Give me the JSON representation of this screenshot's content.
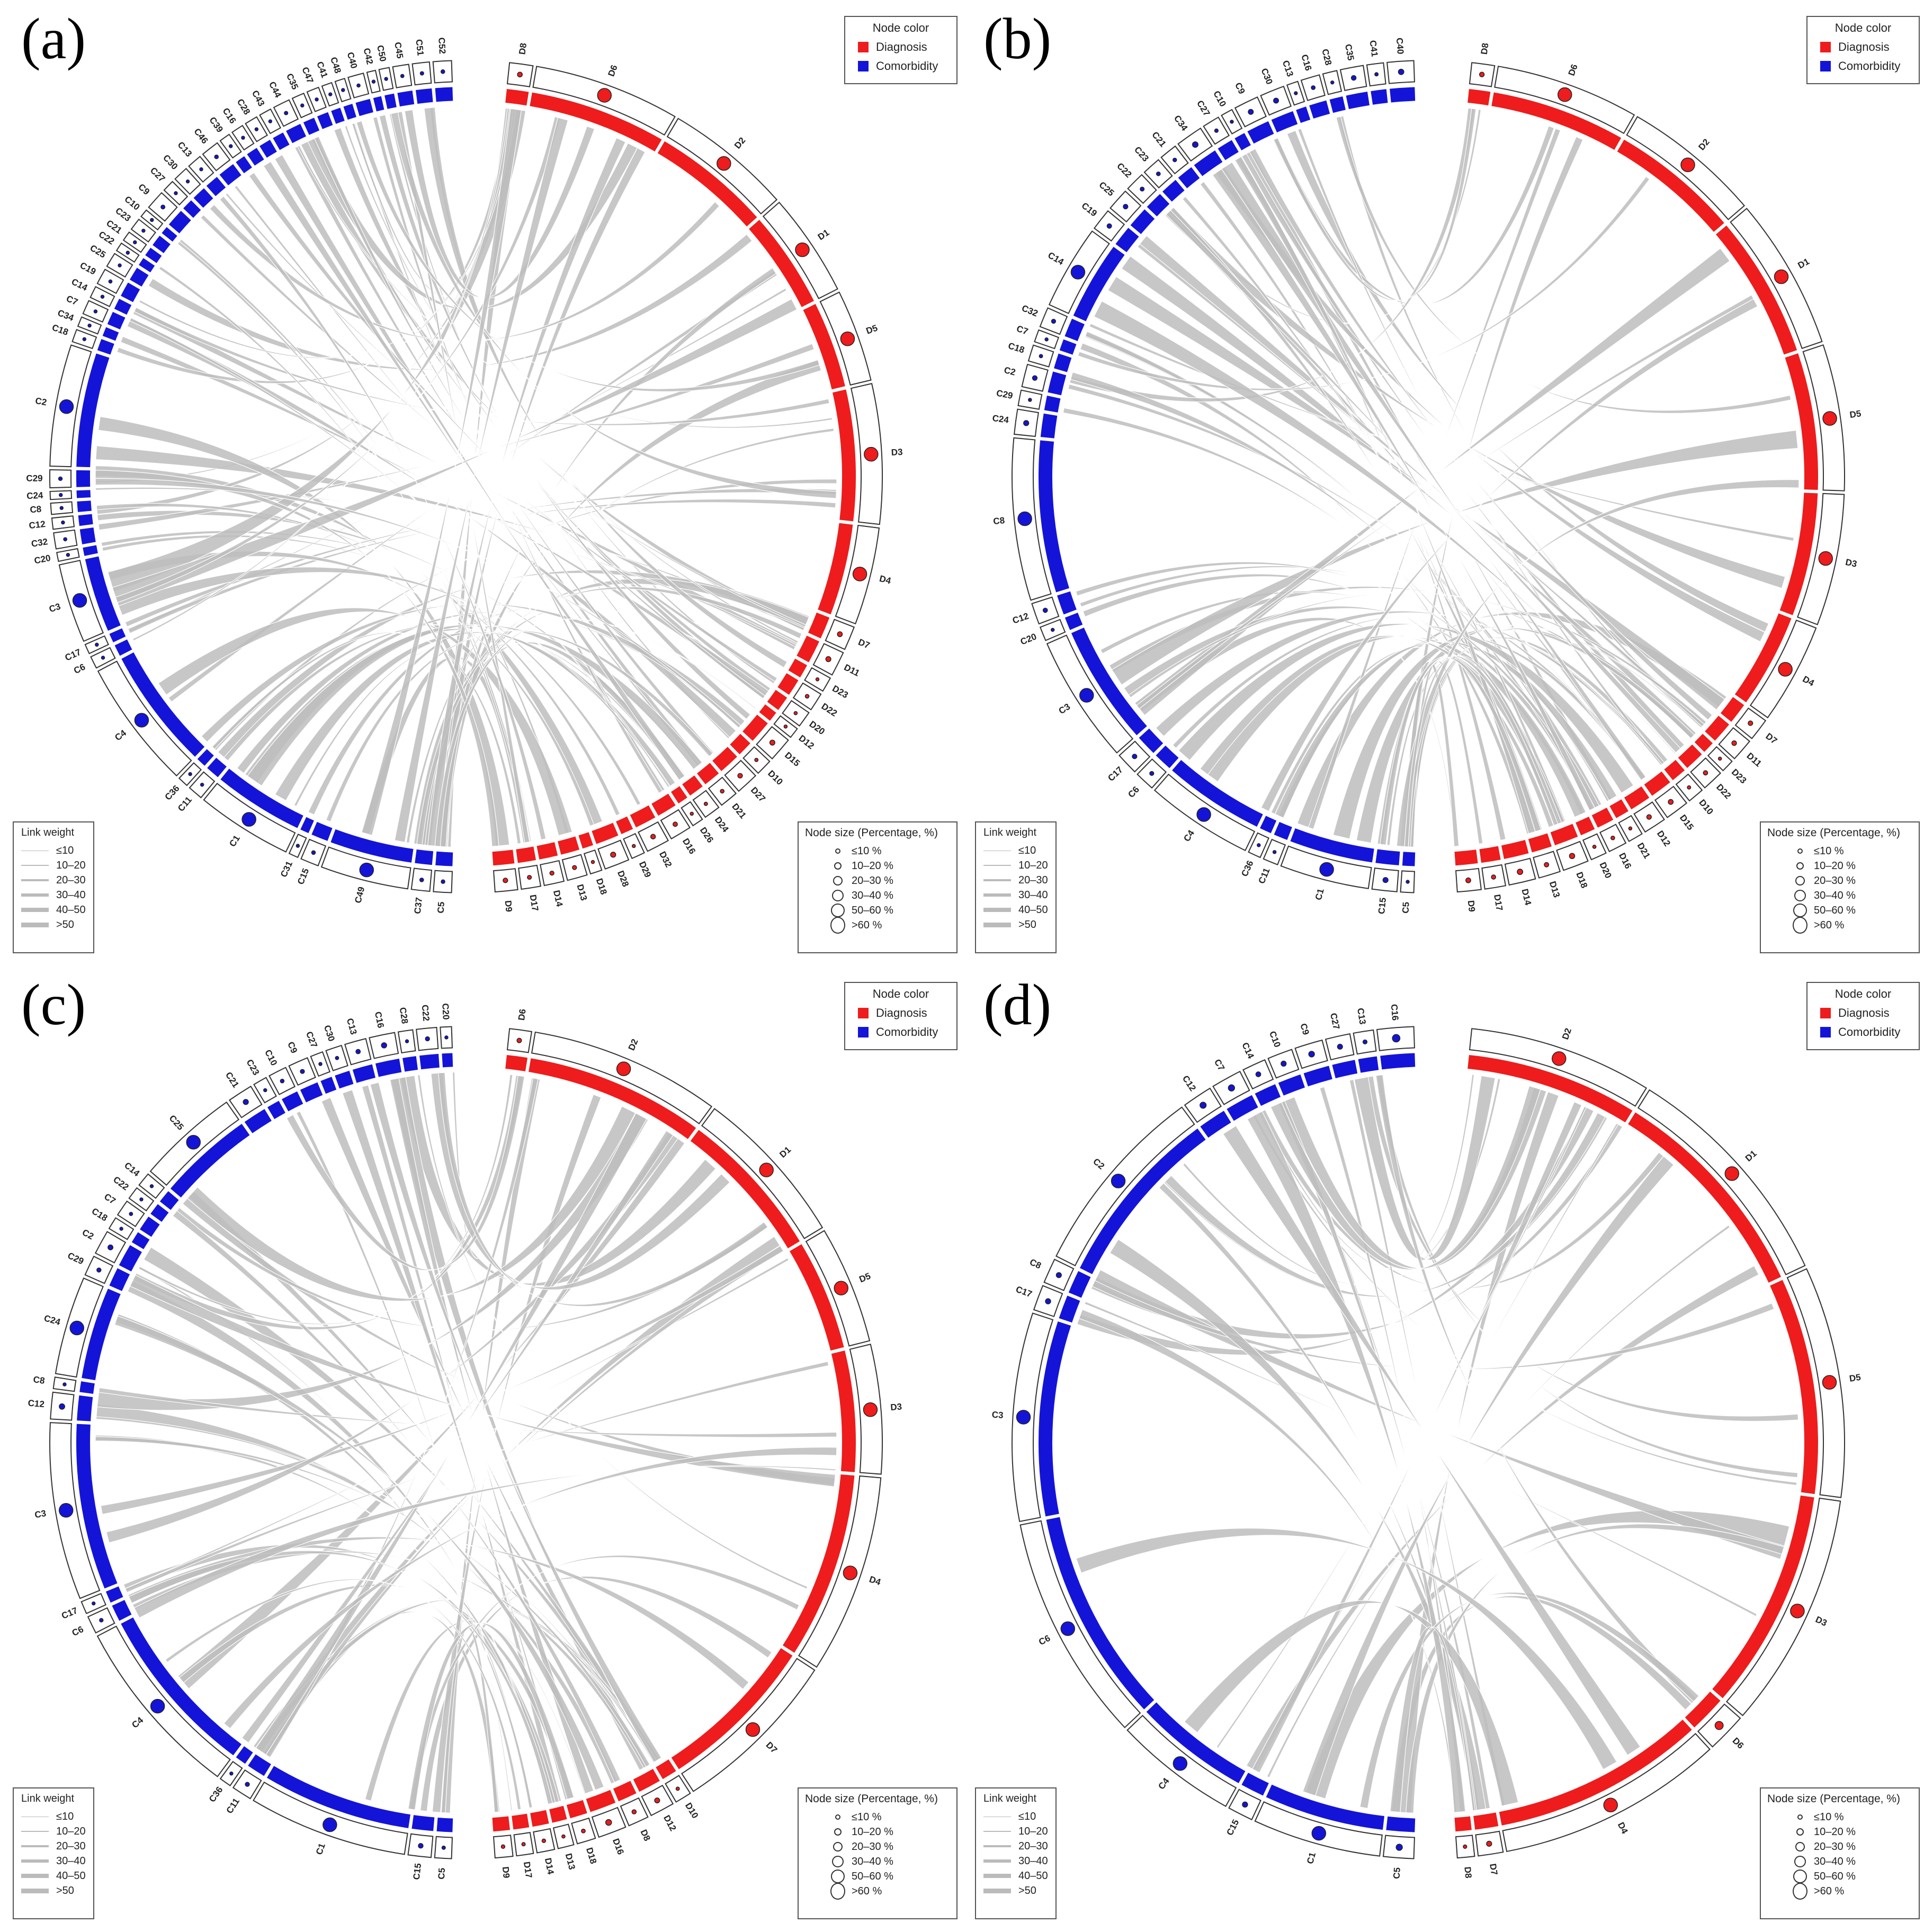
{
  "colors": {
    "diagnosis": "#ee1c1c",
    "comorbidity": "#1414d8",
    "link": "#bdbdbd"
  },
  "legend_node_color": {
    "title": "Node color",
    "diagnosis": "Diagnosis",
    "comorbidity": "Comorbidity"
  },
  "legend_link_weight": {
    "title": "Link weight",
    "items": [
      "≤10",
      "10–20",
      "20–30",
      "30–40",
      "40–50",
      ">50"
    ]
  },
  "legend_node_size": {
    "title": "Node size (Percentage, %)",
    "items": [
      "≤10 %",
      "10–20 %",
      "20–30 %",
      "30–40 %",
      "50–60 %",
      ">60 %"
    ]
  },
  "panels": [
    {
      "letter": "(a)",
      "comorbidity": [
        "C5",
        "C37",
        "C49",
        "C15",
        "C31",
        "C1",
        "C11",
        "C36",
        "C4",
        "C6",
        "C17",
        "C3",
        "C20",
        "C32",
        "C12",
        "C8",
        "C24",
        "C29",
        "C2",
        "C18",
        "C34",
        "C7",
        "C14",
        "C19",
        "C25",
        "C22",
        "C21",
        "C23",
        "C10",
        "C9",
        "C27",
        "C30",
        "C13",
        "C46",
        "C39",
        "C16",
        "C28",
        "C43",
        "C44",
        "C35",
        "C47",
        "C41",
        "C48",
        "C40",
        "C42",
        "C50",
        "C45",
        "C51",
        "C52"
      ],
      "diagnosis": [
        "D8",
        "D6",
        "D2",
        "D1",
        "D5",
        "D3",
        "D4",
        "D7",
        "D11",
        "D23",
        "D22",
        "D20",
        "D12",
        "D15",
        "D10",
        "D27",
        "D21",
        "D24",
        "D26",
        "D16",
        "D32",
        "D29",
        "D28",
        "D18",
        "D13",
        "D14",
        "D17",
        "D9"
      ]
    },
    {
      "letter": "(b)",
      "comorbidity": [
        "C5",
        "C15",
        "C1",
        "C11",
        "C36",
        "C4",
        "C6",
        "C17",
        "C3",
        "C20",
        "C12",
        "C8",
        "C24",
        "C29",
        "C2",
        "C18",
        "C7",
        "C32",
        "C14",
        "C19",
        "C25",
        "C22",
        "C23",
        "C21",
        "C34",
        "C27",
        "C10",
        "C9",
        "C30",
        "C13",
        "C16",
        "C28",
        "C35",
        "C41",
        "C40"
      ],
      "diagnosis": [
        "D8",
        "D6",
        "D2",
        "D1",
        "D5",
        "D3",
        "D4",
        "D7",
        "D11",
        "D23",
        "D22",
        "D10",
        "D15",
        "D12",
        "D21",
        "D16",
        "D20",
        "D18",
        "D13",
        "D14",
        "D17",
        "D9"
      ]
    },
    {
      "letter": "(c)",
      "comorbidity": [
        "C5",
        "C15",
        "C1",
        "C11",
        "C36",
        "C4",
        "C6",
        "C17",
        "C3",
        "C12",
        "C8",
        "C24",
        "C29",
        "C2",
        "C18",
        "C7",
        "C22",
        "C14",
        "C25",
        "C21",
        "C23",
        "C10",
        "C9",
        "C27",
        "C30",
        "C13",
        "C16",
        "C28",
        "C22",
        "C20"
      ],
      "diagnosis": [
        "D6",
        "D2",
        "D1",
        "D5",
        "D3",
        "D4",
        "D7",
        "D10",
        "D12",
        "D8",
        "D16",
        "D18",
        "D13",
        "D14",
        "D17",
        "D9"
      ]
    },
    {
      "letter": "(d)",
      "comorbidity": [
        "C5",
        "C1",
        "C15",
        "C4",
        "C6",
        "C3",
        "C17",
        "C8",
        "C2",
        "C12",
        "C7",
        "C14",
        "C10",
        "C9",
        "C27",
        "C13",
        "C16"
      ],
      "diagnosis": [
        "D2",
        "D1",
        "D5",
        "D3",
        "D6",
        "D4",
        "D7",
        "D8"
      ]
    }
  ]
}
